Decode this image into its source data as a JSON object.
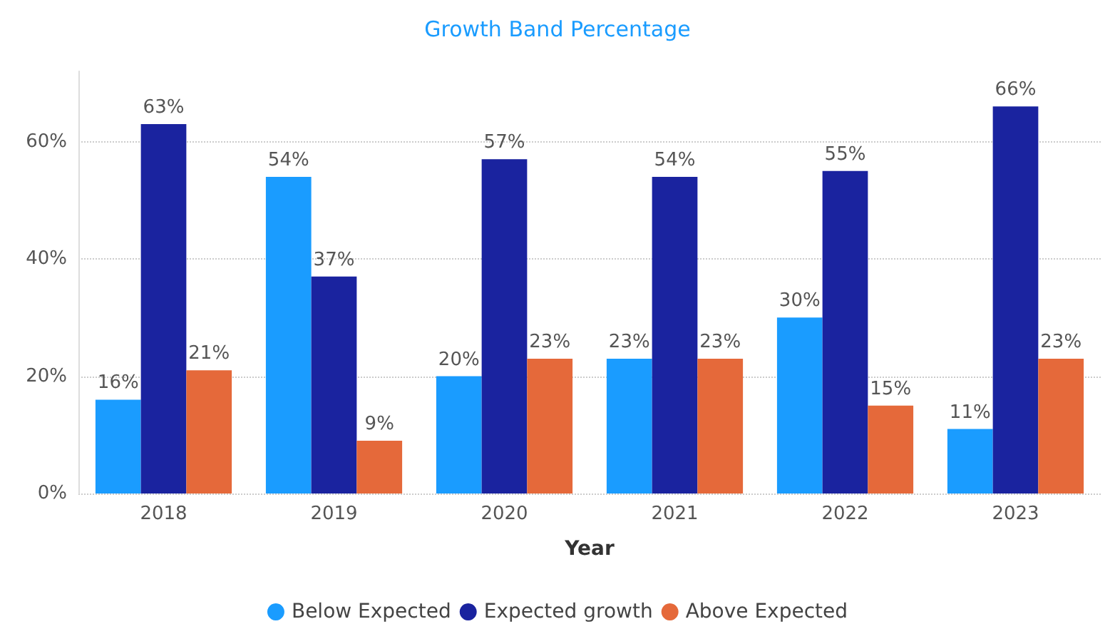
{
  "chart_data": {
    "type": "bar",
    "title": "Growth Band Percentage",
    "xlabel": "Year",
    "categories": [
      "2018",
      "2019",
      "2020",
      "2021",
      "2022",
      "2023"
    ],
    "series": [
      {
        "name": "Below Expected",
        "color": "#1a9cff",
        "values": [
          16,
          54,
          20,
          23,
          30,
          11
        ],
        "value_labels": [
          "16%",
          "54%",
          "20%",
          "23%",
          "30%",
          "11%"
        ]
      },
      {
        "name": "Expected growth",
        "color": "#1a239f",
        "values": [
          63,
          37,
          57,
          54,
          55,
          66
        ],
        "value_labels": [
          "63%",
          "37%",
          "57%",
          "54%",
          "55%",
          "66%"
        ]
      },
      {
        "name": "Above Expected",
        "color": "#e5693a",
        "values": [
          21,
          9,
          23,
          23,
          15,
          23
        ],
        "value_labels": [
          "21%",
          "9%",
          "23%",
          "23%",
          "15%",
          "23%"
        ]
      }
    ],
    "ylim": [
      0,
      72
    ],
    "yticks": [
      {
        "value": 0,
        "label": "0%"
      },
      {
        "value": 20,
        "label": "20%"
      },
      {
        "value": 40,
        "label": "40%"
      },
      {
        "value": 60,
        "label": "60%"
      }
    ],
    "grid": "y",
    "legend": "bottom"
  }
}
